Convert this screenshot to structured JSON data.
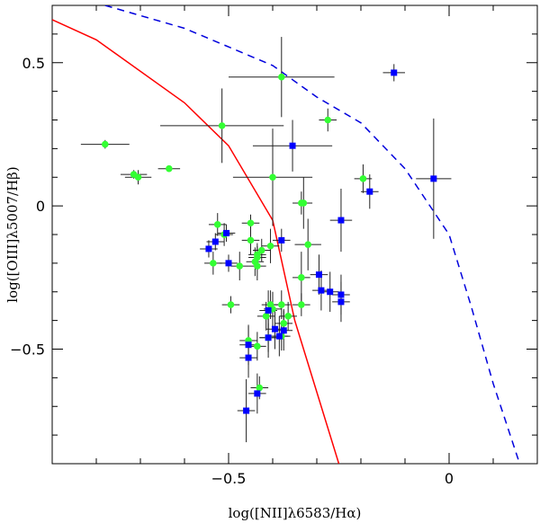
{
  "chart_data": {
    "type": "scatter",
    "title": "",
    "xlabel": "log([NII]λ6583/Hα)",
    "ylabel": "log([OIII]λ5007/Hβ)",
    "xlim": [
      -0.9,
      0.2
    ],
    "ylim": [
      -0.9,
      0.7
    ],
    "x_ticks": [
      -0.5,
      0
    ],
    "x_tick_labels": [
      "−0.5",
      "0"
    ],
    "y_ticks": [
      0.5,
      0,
      -0.5
    ],
    "y_tick_labels": [
      "0.5",
      "0",
      "−0.5"
    ],
    "grid": false,
    "curves": [
      {
        "name": "solid-demarcation",
        "color": "#ff0000",
        "style": "solid",
        "points": [
          [
            -0.9,
            0.65
          ],
          [
            -0.8,
            0.58
          ],
          [
            -0.6,
            0.36
          ],
          [
            -0.5,
            0.21
          ],
          [
            -0.4,
            -0.05
          ],
          [
            -0.35,
            -0.4
          ],
          [
            -0.25,
            -0.9
          ]
        ]
      },
      {
        "name": "dashed-demarcation",
        "color": "#0000dd",
        "style": "dashed",
        "points": [
          [
            -0.78,
            0.7
          ],
          [
            -0.6,
            0.62
          ],
          [
            -0.4,
            0.49
          ],
          [
            -0.3,
            0.38
          ],
          [
            -0.2,
            0.29
          ],
          [
            -0.1,
            0.13
          ],
          [
            0.0,
            -0.1
          ],
          [
            0.05,
            -0.35
          ],
          [
            0.1,
            -0.62
          ],
          [
            0.16,
            -0.9
          ]
        ]
      }
    ],
    "series": [
      {
        "name": "green",
        "color": "#33ff33",
        "marker": "circle",
        "points": [
          {
            "x": -0.78,
            "y": 0.215,
            "xerr": 0.055,
            "yerr": 0.015
          },
          {
            "x": -0.715,
            "y": 0.11,
            "xerr": 0.03,
            "yerr": 0.015
          },
          {
            "x": -0.705,
            "y": 0.1,
            "xerr": 0.03,
            "yerr": 0.025
          },
          {
            "x": -0.635,
            "y": 0.13,
            "xerr": 0.025,
            "yerr": 0.01
          },
          {
            "x": -0.515,
            "y": 0.28,
            "xerr": 0.14,
            "yerr": 0.13
          },
          {
            "x": -0.38,
            "y": 0.45,
            "xerr": 0.12,
            "yerr": 0.14
          },
          {
            "x": -0.275,
            "y": 0.3,
            "xerr": 0.02,
            "yerr": 0.04
          },
          {
            "x": -0.4,
            "y": 0.1,
            "xerr": 0.09,
            "yerr": 0.17
          },
          {
            "x": -0.195,
            "y": 0.095,
            "xerr": 0.02,
            "yerr": 0.05
          },
          {
            "x": -0.33,
            "y": 0.01,
            "xerr": 0.02,
            "yerr": 0.09
          },
          {
            "x": -0.335,
            "y": 0.01,
            "xerr": 0.02,
            "yerr": 0.04
          },
          {
            "x": -0.525,
            "y": -0.065,
            "xerr": 0.02,
            "yerr": 0.04
          },
          {
            "x": -0.51,
            "y": -0.1,
            "xerr": 0.02,
            "yerr": 0.04
          },
          {
            "x": -0.45,
            "y": -0.06,
            "xerr": 0.02,
            "yerr": 0.03
          },
          {
            "x": -0.45,
            "y": -0.12,
            "xerr": 0.02,
            "yerr": 0.05
          },
          {
            "x": -0.32,
            "y": -0.135,
            "xerr": 0.03,
            "yerr": 0.09
          },
          {
            "x": -0.425,
            "y": -0.155,
            "xerr": 0.02,
            "yerr": 0.04
          },
          {
            "x": -0.435,
            "y": -0.17,
            "xerr": 0.02,
            "yerr": 0.04
          },
          {
            "x": -0.435,
            "y": -0.18,
            "xerr": 0.02,
            "yerr": 0.04
          },
          {
            "x": -0.535,
            "y": -0.2,
            "xerr": 0.02,
            "yerr": 0.04
          },
          {
            "x": -0.44,
            "y": -0.195,
            "xerr": 0.02,
            "yerr": 0.05
          },
          {
            "x": -0.475,
            "y": -0.21,
            "xerr": 0.02,
            "yerr": 0.05
          },
          {
            "x": -0.435,
            "y": -0.21,
            "xerr": 0.02,
            "yerr": 0.05
          },
          {
            "x": -0.405,
            "y": -0.14,
            "xerr": 0.02,
            "yerr": 0.06
          },
          {
            "x": -0.335,
            "y": -0.25,
            "xerr": 0.02,
            "yerr": 0.09
          },
          {
            "x": -0.495,
            "y": -0.345,
            "xerr": 0.02,
            "yerr": 0.03
          },
          {
            "x": -0.405,
            "y": -0.345,
            "xerr": 0.02,
            "yerr": 0.05
          },
          {
            "x": -0.4,
            "y": -0.36,
            "xerr": 0.02,
            "yerr": 0.06
          },
          {
            "x": -0.38,
            "y": -0.345,
            "xerr": 0.02,
            "yerr": 0.05
          },
          {
            "x": -0.365,
            "y": -0.385,
            "xerr": 0.02,
            "yerr": 0.05
          },
          {
            "x": -0.335,
            "y": -0.345,
            "xerr": 0.02,
            "yerr": 0.04
          },
          {
            "x": -0.415,
            "y": -0.385,
            "xerr": 0.02,
            "yerr": 0.05
          },
          {
            "x": -0.375,
            "y": -0.41,
            "xerr": 0.02,
            "yerr": 0.05
          },
          {
            "x": -0.38,
            "y": -0.455,
            "xerr": 0.02,
            "yerr": 0.05
          },
          {
            "x": -0.41,
            "y": -0.46,
            "xerr": 0.02,
            "yerr": 0.05
          },
          {
            "x": -0.435,
            "y": -0.49,
            "xerr": 0.02,
            "yerr": 0.05
          },
          {
            "x": -0.455,
            "y": -0.47,
            "xerr": 0.02,
            "yerr": 0.05
          },
          {
            "x": -0.43,
            "y": -0.635,
            "xerr": 0.02,
            "yerr": 0.04
          }
        ]
      },
      {
        "name": "blue",
        "color": "#0000ff",
        "marker": "square",
        "points": [
          {
            "x": -0.125,
            "y": 0.465,
            "xerr": 0.025,
            "yerr": 0.03
          },
          {
            "x": -0.355,
            "y": 0.21,
            "xerr": 0.09,
            "yerr": 0.09
          },
          {
            "x": -0.035,
            "y": 0.095,
            "xerr": 0.04,
            "yerr": 0.21
          },
          {
            "x": -0.18,
            "y": 0.05,
            "xerr": 0.02,
            "yerr": 0.06
          },
          {
            "x": -0.245,
            "y": -0.05,
            "xerr": 0.025,
            "yerr": 0.11
          },
          {
            "x": -0.505,
            "y": -0.095,
            "xerr": 0.02,
            "yerr": 0.03
          },
          {
            "x": -0.38,
            "y": -0.12,
            "xerr": 0.02,
            "yerr": 0.04
          },
          {
            "x": -0.545,
            "y": -0.15,
            "xerr": 0.02,
            "yerr": 0.03
          },
          {
            "x": -0.53,
            "y": -0.125,
            "xerr": 0.02,
            "yerr": 0.03
          },
          {
            "x": -0.5,
            "y": -0.2,
            "xerr": 0.02,
            "yerr": 0.03
          },
          {
            "x": -0.295,
            "y": -0.24,
            "xerr": 0.02,
            "yerr": 0.07
          },
          {
            "x": -0.29,
            "y": -0.295,
            "xerr": 0.02,
            "yerr": 0.07
          },
          {
            "x": -0.245,
            "y": -0.31,
            "xerr": 0.02,
            "yerr": 0.07
          },
          {
            "x": -0.27,
            "y": -0.3,
            "xerr": 0.02,
            "yerr": 0.07
          },
          {
            "x": -0.245,
            "y": -0.335,
            "xerr": 0.02,
            "yerr": 0.07
          },
          {
            "x": -0.41,
            "y": -0.365,
            "xerr": 0.02,
            "yerr": 0.07
          },
          {
            "x": -0.395,
            "y": -0.43,
            "xerr": 0.02,
            "yerr": 0.07
          },
          {
            "x": -0.375,
            "y": -0.435,
            "xerr": 0.02,
            "yerr": 0.07
          },
          {
            "x": -0.385,
            "y": -0.455,
            "xerr": 0.02,
            "yerr": 0.07
          },
          {
            "x": -0.41,
            "y": -0.46,
            "xerr": 0.02,
            "yerr": 0.07
          },
          {
            "x": -0.455,
            "y": -0.485,
            "xerr": 0.02,
            "yerr": 0.07
          },
          {
            "x": -0.455,
            "y": -0.53,
            "xerr": 0.02,
            "yerr": 0.07
          },
          {
            "x": -0.435,
            "y": -0.655,
            "xerr": 0.02,
            "yerr": 0.07
          },
          {
            "x": -0.46,
            "y": -0.715,
            "xerr": 0.02,
            "yerr": 0.11
          }
        ]
      }
    ]
  }
}
